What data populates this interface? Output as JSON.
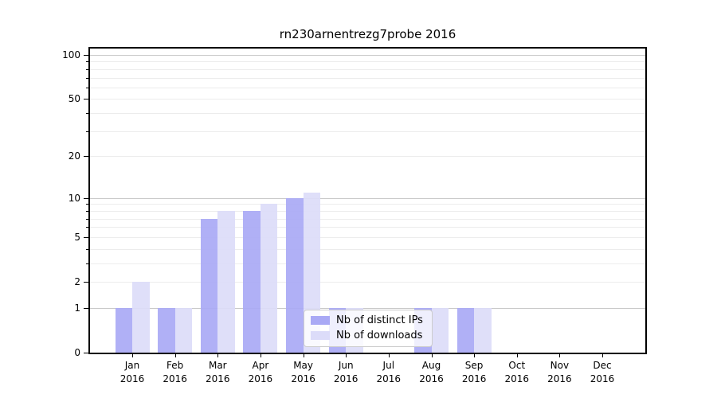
{
  "title": "rn230arnentrezg7probe 2016",
  "chart_data": {
    "type": "bar",
    "title": "rn230arnentrezg7probe 2016",
    "categories": [
      "Jan 2016",
      "Feb 2016",
      "Mar 2016",
      "Apr 2016",
      "May 2016",
      "Jun 2016",
      "Jul 2016",
      "Aug 2016",
      "Sep 2016",
      "Oct 2016",
      "Nov 2016",
      "Dec 2016"
    ],
    "series": [
      {
        "name": "Nb of distinct IPs",
        "color": "#a9a9f5",
        "values": [
          1,
          1,
          7,
          8,
          10,
          1,
          0,
          1,
          1,
          0,
          0,
          0
        ]
      },
      {
        "name": "Nb of downloads",
        "color": "#dcdcf9",
        "values": [
          2,
          1,
          8,
          9,
          11,
          1,
          0,
          1,
          1,
          0,
          0,
          0
        ]
      }
    ],
    "xlabel": "",
    "ylabel": "",
    "yscale": "log(1+y)",
    "ylim": [
      0,
      110
    ],
    "yticks": [
      0,
      1,
      2,
      5,
      10,
      20,
      50,
      100
    ],
    "ytick_labels": [
      "0",
      "1",
      "2",
      "5",
      "10",
      "20",
      "50",
      "100"
    ],
    "major_gridline_values": [
      1,
      10,
      100
    ],
    "minor_gridline_values": [
      2,
      3,
      4,
      5,
      6,
      7,
      8,
      9,
      20,
      30,
      40,
      50,
      60,
      70,
      80,
      90
    ],
    "grid": "on",
    "legend_position": "lower center",
    "colors": {
      "background": "#ffffff",
      "axis": "#000000",
      "major_grid": "#c9c9c9",
      "minor_grid": "#ececec",
      "legend_border": "#cccccc"
    }
  }
}
